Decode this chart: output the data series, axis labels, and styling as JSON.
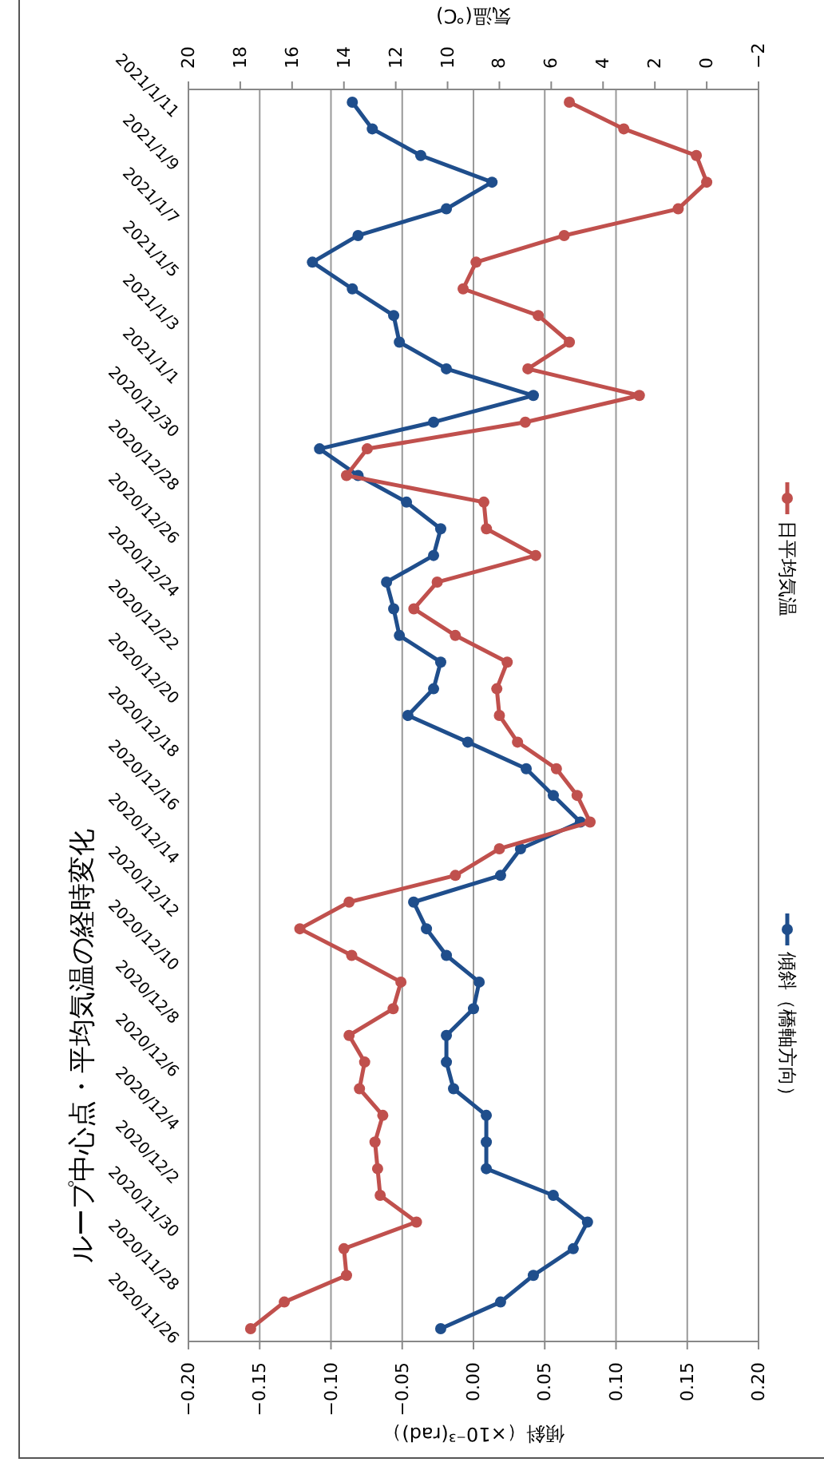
{
  "chart_data": {
    "type": "line",
    "orientation": "horizontal",
    "title": "ループ中心点・平均気温の経時変化",
    "xlabel": "傾斜（×10⁻³(rad)）",
    "x2label": "気温(℃)",
    "categories": [
      "2021/1/11",
      null,
      "2021/1/9",
      null,
      "2021/1/7",
      null,
      "2021/1/5",
      null,
      "2021/1/3",
      null,
      "2021/1/1",
      null,
      "2020/12/30",
      null,
      "2020/12/28",
      null,
      "2020/12/26",
      null,
      "2020/12/24",
      null,
      "2020/12/22",
      null,
      "2020/12/20",
      null,
      "2020/12/18",
      null,
      "2020/12/16",
      null,
      "2020/12/14",
      null,
      "2020/12/12",
      null,
      "2020/12/10",
      null,
      "2020/12/8",
      null,
      "2020/12/6",
      null,
      "2020/12/4",
      null,
      "2020/12/2",
      null,
      "2020/11/30",
      null,
      "2020/11/28",
      null,
      "2020/11/26"
    ],
    "series": [
      {
        "name": "傾斜（橋軸方向）",
        "color": "#1f4e8c",
        "values": [
          -0.085,
          -0.071,
          -0.037,
          0.013,
          -0.019,
          -0.081,
          -0.113,
          -0.085,
          -0.056,
          -0.052,
          -0.019,
          0.042,
          -0.028,
          -0.108,
          -0.081,
          -0.047,
          -0.023,
          -0.028,
          -0.061,
          -0.056,
          -0.052,
          -0.023,
          -0.028,
          -0.046,
          -0.004,
          0.037,
          0.056,
          0.075,
          0.033,
          0.019,
          -0.042,
          -0.033,
          -0.019,
          0.004,
          0.0,
          -0.019,
          -0.019,
          -0.014,
          0.009,
          0.009,
          0.009,
          0.056,
          0.08,
          0.07,
          0.042,
          0.019,
          -0.023
        ]
      },
      {
        "name": "日平均気温",
        "color": "#c0504d",
        "axis": "x2",
        "values": [
          5.3,
          3.2,
          0.4,
          0.0,
          1.1,
          5.5,
          8.9,
          9.4,
          6.5,
          5.3,
          6.9,
          2.6,
          7.0,
          13.1,
          13.9,
          8.6,
          8.5,
          6.6,
          10.4,
          11.3,
          9.7,
          7.7,
          8.1,
          8.0,
          7.3,
          5.8,
          5.0,
          4.5,
          8.0,
          9.7,
          13.8,
          15.7,
          13.7,
          11.8,
          12.1,
          13.8,
          13.2,
          13.4,
          12.5,
          12.8,
          12.7,
          12.6,
          11.2,
          14.0,
          13.9,
          16.3,
          17.6
        ]
      }
    ],
    "xlim": [
      -0.2,
      0.2
    ],
    "xticks": [
      {
        "value": -0.2,
        "label": "−0.20"
      },
      {
        "value": -0.15,
        "label": "−0.15"
      },
      {
        "value": -0.1,
        "label": "−0.10"
      },
      {
        "value": -0.05,
        "label": "−0.05"
      },
      {
        "value": 0,
        "label": "0.00"
      },
      {
        "value": 0.05,
        "label": "0.05"
      },
      {
        "value": 0.1,
        "label": "0.10"
      },
      {
        "value": 0.15,
        "label": "0.15"
      },
      {
        "value": 0.2,
        "label": "0.20"
      }
    ],
    "x2lim": [
      20,
      -2
    ],
    "x2ticks": [
      20,
      18,
      16,
      14,
      12,
      10,
      8,
      6,
      4,
      2,
      0,
      {
        "value": -2,
        "label": "−2"
      }
    ],
    "grid": "x",
    "legend": "right",
    "marker": "circle",
    "line_style": "solid"
  }
}
